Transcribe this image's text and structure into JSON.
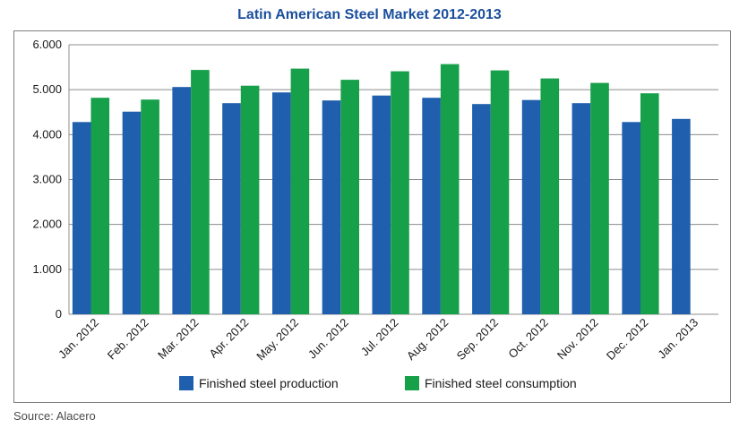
{
  "chart_data": {
    "type": "bar",
    "title": "Latin American Steel Market 2012-2013",
    "xlabel": "",
    "ylabel": "",
    "ylim": [
      0,
      6000
    ],
    "yticks": [
      0,
      1000,
      2000,
      3000,
      4000,
      5000,
      6000
    ],
    "ytick_labels": [
      "0",
      "1.000",
      "2.000",
      "3.000",
      "4.000",
      "5.000",
      "6.000"
    ],
    "grid": true,
    "legend_position": "bottom",
    "categories": [
      "Jan. 2012",
      "Feb. 2012",
      "Mar. 2012",
      "Apr. 2012",
      "May. 2012",
      "Jun. 2012",
      "Jul. 2012",
      "Aug. 2012",
      "Sep. 2012",
      "Oct. 2012",
      "Nov. 2012",
      "Dec. 2012",
      "Jan. 2013"
    ],
    "series": [
      {
        "name": "Finished steel production",
        "color": "#1f5fad",
        "values": [
          4280,
          4510,
          5060,
          4700,
          4940,
          4760,
          4870,
          4820,
          4680,
          4770,
          4700,
          4280,
          4350
        ]
      },
      {
        "name": "Finished steel consumption",
        "color": "#17a04a",
        "values": [
          4820,
          4780,
          5440,
          5090,
          5470,
          5220,
          5410,
          5570,
          5430,
          5250,
          5150,
          4920,
          null
        ]
      }
    ]
  },
  "source": "Source: Alacero"
}
